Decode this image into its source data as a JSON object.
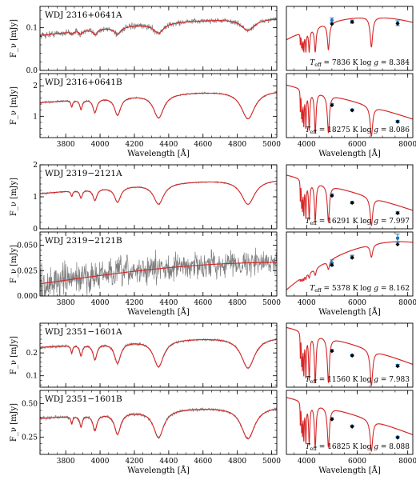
{
  "colors": {
    "observed": "#7f7f7f",
    "model": "#d62728",
    "photometry": "#1f77b4",
    "synthetic": "#000000"
  },
  "chart_data": {
    "type": "line",
    "spectra_x_ticks": [
      3800,
      4000,
      4200,
      4400,
      4600,
      4800,
      5000
    ],
    "spectra_x_range": [
      3650,
      5030
    ],
    "sed_x_ticks": [
      4000,
      6000,
      8000
    ],
    "sed_x_range": [
      3200,
      8200
    ],
    "xlabel": "Wavelength [Å]",
    "balmer_lines": [
      {
        "center": 3835,
        "depth": 0.14,
        "width": 6
      },
      {
        "center": 3889,
        "depth": 0.2,
        "width": 9
      },
      {
        "center": 3970,
        "depth": 0.28,
        "width": 14
      },
      {
        "center": 4102,
        "depth": 0.36,
        "width": 22
      },
      {
        "center": 4341,
        "depth": 0.45,
        "width": 36
      },
      {
        "center": 4862,
        "depth": 0.5,
        "width": 48
      }
    ],
    "photometry_wavelengths": [
      5000,
      5800,
      7600
    ],
    "pairs": [
      {
        "y_offset": 0,
        "a": {
          "name": "WDJ 2316+0641A",
          "ylabel": "F_ν [mJy]",
          "ylim": [
            0,
            0.15
          ],
          "yticks": [
            "0.0",
            "0.1"
          ],
          "ytick_values": [
            0,
            0.1
          ],
          "continuum": [
            0.082,
            0.122
          ],
          "line_scale": 0.45,
          "noise": 0.005,
          "sed": {
            "teff": 7836,
            "logg": 8.384,
            "continuum": [
              0.08,
              0.13,
              0.12
            ],
            "line_scale": 0.8,
            "ylim": [
              0.0,
              0.16
            ],
            "obs": [
              0.125,
              0.122,
              0.118
            ],
            "obs_err": [
              0.006,
              0.004,
              0.006
            ],
            "synth": [
              0.116,
              0.121,
              0.117
            ]
          }
        },
        "b": {
          "name": "WDJ 2316+0641B",
          "ylabel": "F_ν [mJy]",
          "ylim": [
            0.3,
            2.4
          ],
          "yticks": [
            "1",
            "2"
          ],
          "ytick_values": [
            1,
            2
          ],
          "continuum": [
            1.45,
            1.85
          ],
          "line_scale": 1.0,
          "noise": 0.02,
          "sed": {
            "teff": 18275,
            "logg": 8.086,
            "continuum": [
              1.95,
              1.5,
              0.95
            ],
            "line_scale": 0.95,
            "ylim": [
              0.4,
              2.3
            ],
            "obs": [
              1.38,
              1.22,
              0.88
            ],
            "obs_err": [
              0.03,
              0.03,
              0.03
            ],
            "synth": [
              1.36,
              1.21,
              0.87
            ]
          }
        }
      },
      {
        "y_offset": 198,
        "a": {
          "name": "WDJ 2319−2121A",
          "ylabel": "F_ν [mJy]",
          "ylim": [
            0,
            2.0
          ],
          "yticks": [
            "0",
            "1",
            "2"
          ],
          "ytick_values": [
            0,
            1,
            2
          ],
          "continuum": [
            1.1,
            1.55
          ],
          "line_scale": 1.0,
          "noise": 0.015,
          "sed": {
            "teff": 16291,
            "logg": 7.997,
            "continuum": [
              1.8,
              1.35,
              0.82
            ],
            "line_scale": 0.95,
            "ylim": [
              0.3,
              2.1
            ],
            "obs": [
              1.25,
              1.04,
              0.75
            ],
            "obs_err": [
              0.03,
              0.03,
              0.03
            ],
            "synth": [
              1.23,
              1.03,
              0.74
            ]
          }
        },
        "b": {
          "name": "WDJ 2319−2121B",
          "ylabel": "F_ν [mJy]",
          "ylim": [
            0,
            0.063
          ],
          "yticks": [
            "0.000",
            "0.025",
            "0.050"
          ],
          "ytick_values": [
            0,
            0.025,
            0.05
          ],
          "continuum": [
            0.012,
            0.033
          ],
          "line_scale": 0.0,
          "noise": 0.01,
          "sed": {
            "teff": 5378,
            "logg": 8.162,
            "continuum": [
              0.008,
              0.044,
              0.052
            ],
            "line_scale": 0.35,
            "ylim": [
              0.0,
              0.062
            ],
            "obs": [
              0.032,
              0.038,
              0.056
            ],
            "obs_err": [
              0.003,
              0.0015,
              0.004
            ],
            "synth": [
              0.03,
              0.037,
              0.05
            ]
          }
        }
      },
      {
        "y_offset": 396,
        "a": {
          "name": "WDJ 2351−1601A",
          "ylabel": "F_ν [mJy]",
          "ylim": [
            0.05,
            0.33
          ],
          "yticks": [
            "0.1",
            "0.2"
          ],
          "ytick_values": [
            0.1,
            0.2
          ],
          "continuum": [
            0.225,
            0.27
          ],
          "line_scale": 1.0,
          "noise": 0.004,
          "sed": {
            "teff": 11560,
            "logg": 7.983,
            "continuum": [
              0.32,
              0.25,
              0.16
            ],
            "line_scale": 1.0,
            "ylim": [
              0.06,
              0.34
            ],
            "obs": [
              0.22,
              0.2,
              0.155
            ],
            "obs_err": [
              0.005,
              0.004,
              0.005
            ],
            "synth": [
              0.218,
              0.198,
              0.152
            ]
          }
        },
        "b": {
          "name": "WDJ 2351−1601B",
          "ylabel": "F_ν [mJy]",
          "ylim": [
            0.12,
            0.6
          ],
          "yticks": [
            "0.25",
            "0.50"
          ],
          "ytick_values": [
            0.25,
            0.5
          ],
          "continuum": [
            0.39,
            0.48
          ],
          "line_scale": 1.0,
          "noise": 0.008,
          "sed": {
            "teff": 16825,
            "logg": 8.088,
            "continuum": [
              0.56,
              0.43,
              0.26
            ],
            "line_scale": 0.95,
            "ylim": [
              0.1,
              0.62
            ],
            "obs": [
              0.39,
              0.33,
              0.24
            ],
            "obs_err": [
              0.008,
              0.007,
              0.007
            ],
            "synth": [
              0.385,
              0.325,
              0.236
            ]
          }
        }
      }
    ]
  }
}
